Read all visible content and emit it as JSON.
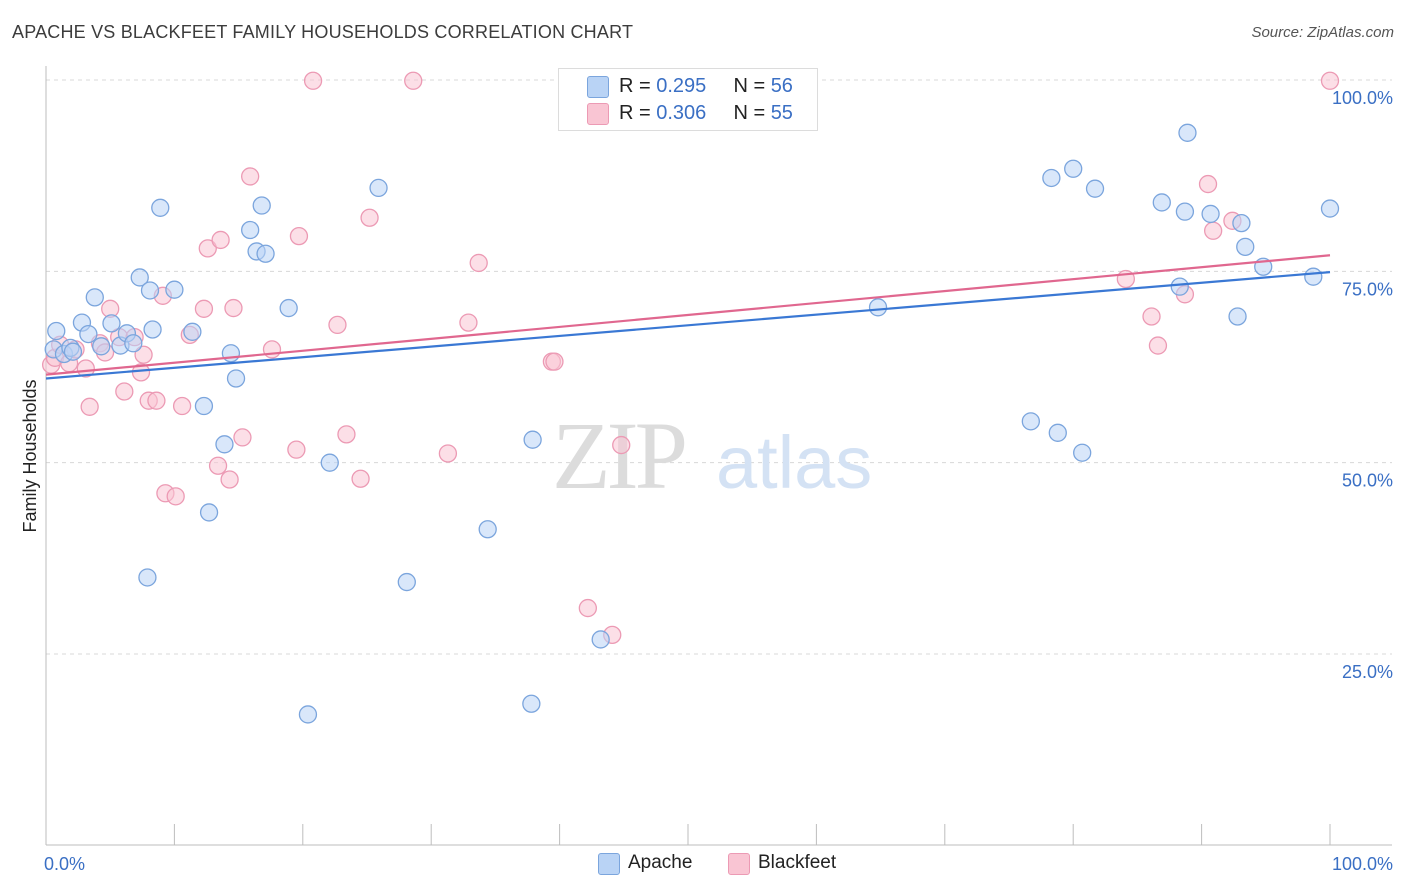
{
  "title": "APACHE VS BLACKFEET FAMILY HOUSEHOLDS CORRELATION CHART",
  "source": "Source: ZipAtlas.com",
  "watermark": {
    "zip": "ZIP",
    "atlas": "atlas"
  },
  "legend": {
    "rows": [
      {
        "r_label": "R = ",
        "r_value": "0.295",
        "n_label": "N = ",
        "n_value": "56"
      },
      {
        "r_label": "R = ",
        "r_value": "0.306",
        "n_label": "N = ",
        "n_value": "55"
      }
    ]
  },
  "colors": {
    "apache_fill": "#b9d3f5",
    "apache_stroke": "#7ba5dd",
    "apache_line": "#3a78d4",
    "blackfeet_fill": "#f9c5d3",
    "blackfeet_stroke": "#ec9ab4",
    "blackfeet_line": "#e0678f",
    "tick_text": "#3a6fc4",
    "grid": "#d8d8d8"
  },
  "chart_data": {
    "type": "scatter",
    "title": "APACHE VS BLACKFEET FAMILY HOUSEHOLDS CORRELATION CHART",
    "xlabel": "",
    "ylabel": "Family Households",
    "xlim": [
      0,
      100
    ],
    "ylim": [
      0,
      102
    ],
    "x_tick_labels": [
      "0.0%",
      "100.0%"
    ],
    "y_tick_labels": [
      {
        "value": 25,
        "label": "25.0%"
      },
      {
        "value": 50,
        "label": "50.0%"
      },
      {
        "value": 75,
        "label": "75.0%"
      },
      {
        "value": 100,
        "label": "100.0%"
      }
    ],
    "grid": "horizontal dashed",
    "legend_position": "top-center",
    "series": [
      {
        "name": "Apache",
        "r": 0.295,
        "n": 56,
        "trend": {
          "x": [
            0,
            100
          ],
          "y": [
            61.0,
            74.9
          ]
        },
        "points": [
          [
            0.6,
            64.8
          ],
          [
            0.8,
            67.2
          ],
          [
            1.4,
            64.2
          ],
          [
            1.9,
            65.0
          ],
          [
            2.8,
            68.3
          ],
          [
            3.3,
            66.8
          ],
          [
            3.8,
            71.6
          ],
          [
            4.3,
            65.2
          ],
          [
            5.1,
            68.2
          ],
          [
            5.8,
            65.3
          ],
          [
            6.3,
            66.9
          ],
          [
            6.8,
            65.6
          ],
          [
            7.3,
            74.2
          ],
          [
            8.1,
            72.5
          ],
          [
            8.3,
            67.4
          ],
          [
            8.9,
            83.3
          ],
          [
            10.0,
            72.6
          ],
          [
            11.4,
            67.1
          ],
          [
            12.3,
            57.4
          ],
          [
            12.7,
            43.5
          ],
          [
            13.9,
            52.4
          ],
          [
            14.4,
            64.3
          ],
          [
            14.8,
            61.0
          ],
          [
            15.9,
            80.4
          ],
          [
            16.4,
            77.6
          ],
          [
            16.8,
            83.6
          ],
          [
            17.1,
            77.3
          ],
          [
            18.9,
            70.2
          ],
          [
            20.4,
            17.1
          ],
          [
            22.1,
            50.0
          ],
          [
            25.9,
            85.9
          ],
          [
            28.1,
            34.4
          ],
          [
            34.4,
            41.3
          ],
          [
            37.8,
            18.5
          ],
          [
            37.9,
            53.0
          ],
          [
            43.2,
            26.9
          ],
          [
            7.9,
            35.0
          ],
          [
            64.8,
            70.3
          ],
          [
            76.7,
            55.4
          ],
          [
            78.3,
            87.2
          ],
          [
            78.8,
            53.9
          ],
          [
            80.0,
            88.4
          ],
          [
            80.7,
            51.3
          ],
          [
            81.7,
            85.8
          ],
          [
            86.9,
            84.0
          ],
          [
            88.3,
            73.0
          ],
          [
            88.7,
            82.8
          ],
          [
            88.9,
            93.1
          ],
          [
            90.7,
            82.5
          ],
          [
            92.8,
            69.1
          ],
          [
            93.1,
            81.3
          ],
          [
            93.4,
            78.2
          ],
          [
            94.8,
            75.6
          ],
          [
            98.7,
            74.3
          ],
          [
            100.0,
            83.2
          ],
          [
            2.1,
            64.5
          ]
        ]
      },
      {
        "name": "Blackfeet",
        "r": 0.306,
        "n": 55,
        "trend": {
          "x": [
            0,
            100
          ],
          "y": [
            61.5,
            77.1
          ]
        },
        "points": [
          [
            0.4,
            62.8
          ],
          [
            0.7,
            63.7
          ],
          [
            1.1,
            65.4
          ],
          [
            1.8,
            63.0
          ],
          [
            2.3,
            64.8
          ],
          [
            3.1,
            62.3
          ],
          [
            3.4,
            57.3
          ],
          [
            4.2,
            65.6
          ],
          [
            4.6,
            64.4
          ],
          [
            5.0,
            70.1
          ],
          [
            5.7,
            66.4
          ],
          [
            6.1,
            59.3
          ],
          [
            6.9,
            66.4
          ],
          [
            7.4,
            61.8
          ],
          [
            7.6,
            64.1
          ],
          [
            8.0,
            58.1
          ],
          [
            8.6,
            58.1
          ],
          [
            9.1,
            71.8
          ],
          [
            9.3,
            46.0
          ],
          [
            10.1,
            45.6
          ],
          [
            10.6,
            57.4
          ],
          [
            11.2,
            66.7
          ],
          [
            12.3,
            70.1
          ],
          [
            12.6,
            78.0
          ],
          [
            13.4,
            49.6
          ],
          [
            13.6,
            79.1
          ],
          [
            14.3,
            47.8
          ],
          [
            14.6,
            70.2
          ],
          [
            15.3,
            53.3
          ],
          [
            15.9,
            87.4
          ],
          [
            17.6,
            64.8
          ],
          [
            19.5,
            51.7
          ],
          [
            19.7,
            79.6
          ],
          [
            20.8,
            99.9
          ],
          [
            22.7,
            68.0
          ],
          [
            23.4,
            53.7
          ],
          [
            24.5,
            47.9
          ],
          [
            25.2,
            82.0
          ],
          [
            28.6,
            99.9
          ],
          [
            31.3,
            51.2
          ],
          [
            32.9,
            68.3
          ],
          [
            33.7,
            76.1
          ],
          [
            39.4,
            63.2
          ],
          [
            39.6,
            63.2
          ],
          [
            42.2,
            31.0
          ],
          [
            44.1,
            27.5
          ],
          [
            44.8,
            52.3
          ],
          [
            84.1,
            74.0
          ],
          [
            86.1,
            69.1
          ],
          [
            86.6,
            65.3
          ],
          [
            88.7,
            72.0
          ],
          [
            90.5,
            86.4
          ],
          [
            90.9,
            80.3
          ],
          [
            92.4,
            81.6
          ],
          [
            100.0,
            99.9
          ]
        ]
      }
    ]
  }
}
